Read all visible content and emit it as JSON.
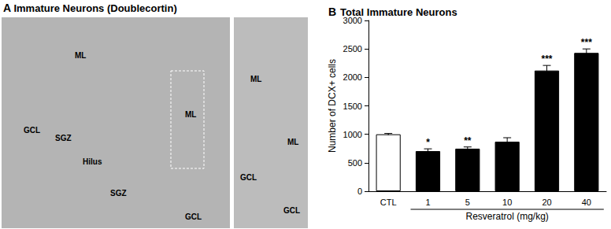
{
  "chart_data": {
    "type": "bar",
    "panel_label": "B",
    "title": "Total Immature Neurons",
    "y_label": "Number of DCX+ cells",
    "x_label": "Resveratrol (mg/kg)",
    "categories": [
      "CTL",
      "1",
      "5",
      "10",
      "20",
      "40"
    ],
    "values": [
      1000,
      705,
      748,
      870,
      2120,
      2430
    ],
    "errors": [
      15,
      40,
      30,
      70,
      90,
      70
    ],
    "annotations": [
      null,
      "*",
      "**",
      null,
      "***",
      "***"
    ],
    "colors": [
      "#ffffff",
      "#000000",
      "#000000",
      "#000000",
      "#000000",
      "#000000"
    ],
    "ylim": [
      0,
      3000
    ],
    "yticks": [
      0,
      500,
      1000,
      1500,
      2000,
      2500,
      3000
    ],
    "grid": false
  },
  "image_panel": {
    "panel_label": "A",
    "title": "Immature Neurons (Doublecortin)",
    "left_labels": [
      "ML",
      "GCL",
      "SGZ",
      "Hilus",
      "SGZ",
      "ML",
      "GCL"
    ],
    "right_labels": [
      "ML",
      "ML",
      "GCL",
      "GCL"
    ]
  }
}
